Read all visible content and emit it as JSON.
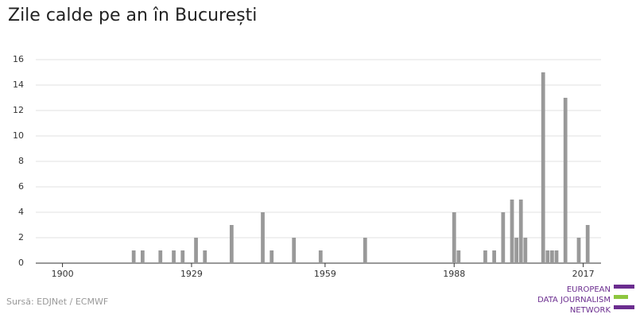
{
  "chart_data": {
    "type": "bar",
    "title": "Zile calde pe an în București",
    "x": [
      1916,
      1918,
      1922,
      1925,
      1927,
      1930,
      1932,
      1938,
      1945,
      1947,
      1952,
      1958,
      1968,
      1988,
      1989,
      1995,
      1997,
      1999,
      2001,
      2002,
      2003,
      2004,
      2008,
      2009,
      2010,
      2011,
      2013,
      2016,
      2018
    ],
    "values": [
      1,
      1,
      1,
      1,
      1,
      2,
      1,
      3,
      4,
      1,
      2,
      1,
      2,
      4,
      1,
      1,
      1,
      4,
      5,
      2,
      5,
      2,
      15,
      1,
      1,
      1,
      13,
      2,
      3
    ],
    "color": "#999999",
    "xlim": [
      1894,
      2021
    ],
    "xticks": [
      1900,
      1929,
      1959,
      1988,
      2017
    ],
    "ylim": [
      0,
      16
    ],
    "yticks": [
      0,
      2,
      4,
      6,
      8,
      10,
      12,
      14,
      16
    ],
    "grid": true
  },
  "source": "Sursă: EDJNet / ECMWF",
  "logo": [
    "EUROPEAN",
    "DATA JOURNALISM",
    "NETWORK"
  ]
}
